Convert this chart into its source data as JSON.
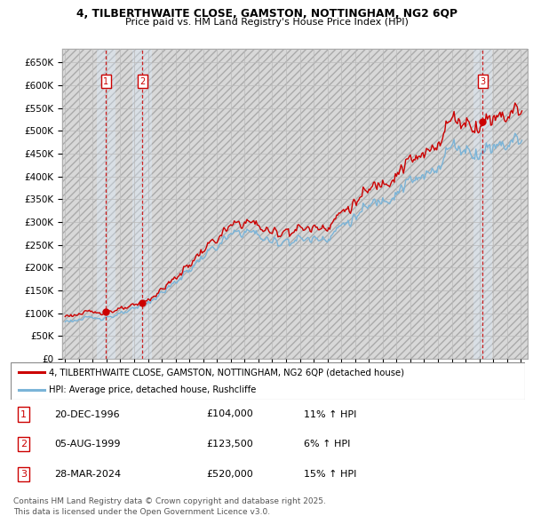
{
  "title_line1": "4, TILBERTHWAITE CLOSE, GAMSTON, NOTTINGHAM, NG2 6QP",
  "title_line2": "Price paid vs. HM Land Registry's House Price Index (HPI)",
  "ylim": [
    0,
    680000
  ],
  "yticks": [
    0,
    50000,
    100000,
    150000,
    200000,
    250000,
    300000,
    350000,
    400000,
    450000,
    500000,
    550000,
    600000,
    650000
  ],
  "ytick_labels": [
    "£0",
    "£50K",
    "£100K",
    "£150K",
    "£200K",
    "£250K",
    "£300K",
    "£350K",
    "£400K",
    "£450K",
    "£500K",
    "£550K",
    "£600K",
    "£650K"
  ],
  "hpi_color": "#7ab4d8",
  "price_color": "#cc0000",
  "grid_color": "#bbbbbb",
  "hatch_color": "#d8d8d8",
  "shade_color": "#ddeeff",
  "sale_dates": [
    "1996-12-20",
    "1999-08-05",
    "2024-03-28"
  ],
  "sale_prices": [
    104000,
    123500,
    520000
  ],
  "sale_labels": [
    "1",
    "2",
    "3"
  ],
  "legend_line1": "4, TILBERTHWAITE CLOSE, GAMSTON, NOTTINGHAM, NG2 6QP (detached house)",
  "legend_line2": "HPI: Average price, detached house, Rushcliffe",
  "table_entries": [
    {
      "label": "1",
      "date": "20-DEC-1996",
      "price": "£104,000",
      "hpi": "11% ↑ HPI"
    },
    {
      "label": "2",
      "date": "05-AUG-1999",
      "price": "£123,500",
      "hpi": "6% ↑ HPI"
    },
    {
      "label": "3",
      "date": "28-MAR-2024",
      "price": "£520,000",
      "hpi": "15% ↑ HPI"
    }
  ],
  "footnote": "Contains HM Land Registry data © Crown copyright and database right 2025.\nThis data is licensed under the Open Government Licence v3.0.",
  "xstart_year": 1994,
  "xend_year": 2027,
  "hpi_anchors_years": [
    1994,
    1995,
    1996,
    1997,
    1998,
    1999,
    2000,
    2001,
    2002,
    2003,
    2004,
    2005,
    2006,
    2007,
    2008,
    2009,
    2010,
    2011,
    2012,
    2013,
    2014,
    2015,
    2016,
    2017,
    2018,
    2019,
    2020,
    2021,
    2022,
    2023,
    2024,
    2025,
    2026,
    2027
  ],
  "hpi_anchors_vals": [
    83000,
    86000,
    89000,
    93000,
    97000,
    107000,
    124000,
    145000,
    168000,
    196000,
    225000,
    247000,
    268000,
    283000,
    272000,
    254000,
    263000,
    262000,
    262000,
    271000,
    291000,
    312000,
    331000,
    353000,
    374000,
    388000,
    392000,
    430000,
    468000,
    462000,
    455000,
    470000,
    478000,
    485000
  ]
}
